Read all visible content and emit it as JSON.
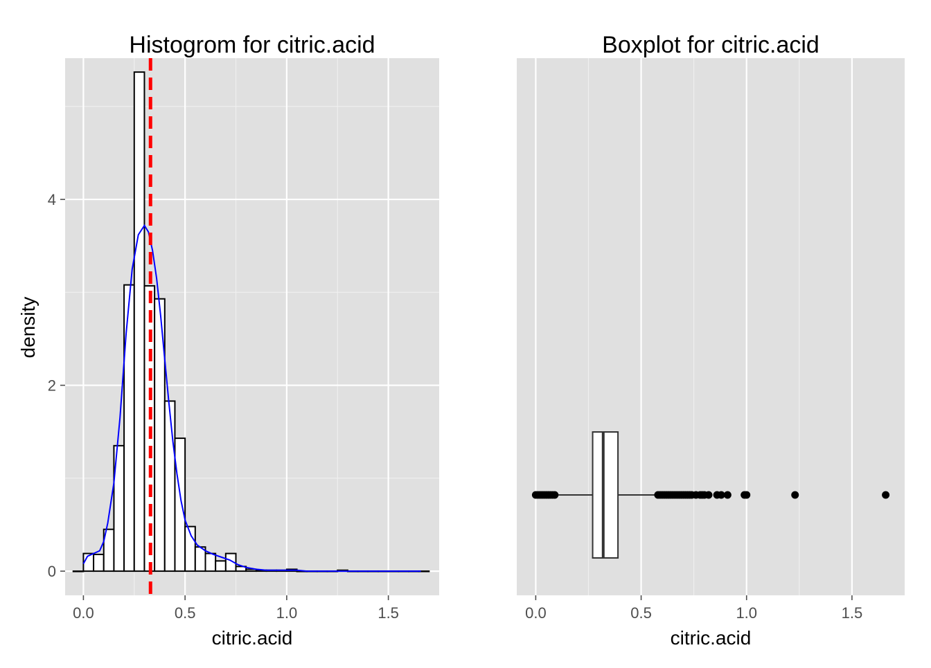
{
  "chart_data": [
    {
      "type": "bar",
      "subtype": "histogram",
      "title": "Histogrom for citric.acid",
      "xlabel": "citric.acid",
      "ylabel": "density",
      "xlim": [
        -0.09,
        1.75
      ],
      "ylim": [
        -0.26,
        5.52
      ],
      "x_ticks": [
        0.0,
        0.5,
        1.0,
        1.5
      ],
      "x_tick_labels": [
        "0.0",
        "0.5",
        "1.0",
        "1.5"
      ],
      "y_ticks": [
        0,
        2,
        4
      ],
      "y_tick_labels": [
        "0",
        "2",
        "4"
      ],
      "grid": true,
      "bin_width": 0.05,
      "bins": [
        {
          "x0": -0.05,
          "x1": 0.0,
          "density": 0.0
        },
        {
          "x0": 0.0,
          "x1": 0.05,
          "density": 0.19
        },
        {
          "x0": 0.05,
          "x1": 0.1,
          "density": 0.18
        },
        {
          "x0": 0.1,
          "x1": 0.15,
          "density": 0.45
        },
        {
          "x0": 0.15,
          "x1": 0.2,
          "density": 1.35
        },
        {
          "x0": 0.2,
          "x1": 0.25,
          "density": 3.08
        },
        {
          "x0": 0.25,
          "x1": 0.3,
          "density": 5.37
        },
        {
          "x0": 0.3,
          "x1": 0.35,
          "density": 3.07
        },
        {
          "x0": 0.35,
          "x1": 0.4,
          "density": 2.93
        },
        {
          "x0": 0.4,
          "x1": 0.45,
          "density": 1.83
        },
        {
          "x0": 0.45,
          "x1": 0.5,
          "density": 1.43
        },
        {
          "x0": 0.5,
          "x1": 0.55,
          "density": 0.48
        },
        {
          "x0": 0.55,
          "x1": 0.6,
          "density": 0.26
        },
        {
          "x0": 0.6,
          "x1": 0.65,
          "density": 0.19
        },
        {
          "x0": 0.65,
          "x1": 0.7,
          "density": 0.11
        },
        {
          "x0": 0.7,
          "x1": 0.75,
          "density": 0.19
        },
        {
          "x0": 0.75,
          "x1": 0.8,
          "density": 0.05
        },
        {
          "x0": 0.8,
          "x1": 0.85,
          "density": 0.02
        },
        {
          "x0": 0.85,
          "x1": 0.9,
          "density": 0.01
        },
        {
          "x0": 0.9,
          "x1": 0.95,
          "density": 0.01
        },
        {
          "x0": 0.95,
          "x1": 1.0,
          "density": 0.01
        },
        {
          "x0": 1.0,
          "x1": 1.05,
          "density": 0.02
        },
        {
          "x0": 1.05,
          "x1": 1.1,
          "density": 0.0
        },
        {
          "x0": 1.1,
          "x1": 1.15,
          "density": 0.0
        },
        {
          "x0": 1.15,
          "x1": 1.2,
          "density": 0.0
        },
        {
          "x0": 1.2,
          "x1": 1.25,
          "density": 0.0
        },
        {
          "x0": 1.25,
          "x1": 1.3,
          "density": 0.01
        },
        {
          "x0": 1.3,
          "x1": 1.35,
          "density": 0.0
        },
        {
          "x0": 1.35,
          "x1": 1.4,
          "density": 0.0
        },
        {
          "x0": 1.4,
          "x1": 1.45,
          "density": 0.0
        },
        {
          "x0": 1.45,
          "x1": 1.5,
          "density": 0.0
        },
        {
          "x0": 1.5,
          "x1": 1.55,
          "density": 0.0
        },
        {
          "x0": 1.55,
          "x1": 1.6,
          "density": 0.0
        },
        {
          "x0": 1.6,
          "x1": 1.65,
          "density": 0.0
        },
        {
          "x0": 1.65,
          "x1": 1.7,
          "density": 0.0
        }
      ],
      "bar_fill": "#ffffff",
      "bar_stroke": "#000000",
      "density_curve": {
        "color": "#0000ff",
        "points": [
          [
            0.0,
            0.08
          ],
          [
            0.02,
            0.16
          ],
          [
            0.05,
            0.19
          ],
          [
            0.08,
            0.22
          ],
          [
            0.1,
            0.32
          ],
          [
            0.12,
            0.52
          ],
          [
            0.15,
            0.95
          ],
          [
            0.18,
            1.65
          ],
          [
            0.21,
            2.55
          ],
          [
            0.24,
            3.25
          ],
          [
            0.27,
            3.62
          ],
          [
            0.3,
            3.72
          ],
          [
            0.32,
            3.65
          ],
          [
            0.34,
            3.45
          ],
          [
            0.36,
            3.15
          ],
          [
            0.38,
            2.75
          ],
          [
            0.4,
            2.28
          ],
          [
            0.42,
            1.82
          ],
          [
            0.44,
            1.4
          ],
          [
            0.46,
            1.05
          ],
          [
            0.48,
            0.76
          ],
          [
            0.5,
            0.55
          ],
          [
            0.53,
            0.38
          ],
          [
            0.56,
            0.28
          ],
          [
            0.6,
            0.22
          ],
          [
            0.64,
            0.18
          ],
          [
            0.68,
            0.15
          ],
          [
            0.72,
            0.12
          ],
          [
            0.76,
            0.07
          ],
          [
            0.8,
            0.04
          ],
          [
            0.85,
            0.02
          ],
          [
            0.9,
            0.01
          ],
          [
            0.95,
            0.01
          ],
          [
            1.0,
            0.01
          ],
          [
            1.05,
            0.01
          ],
          [
            1.1,
            0.0
          ],
          [
            1.66,
            0.0
          ]
        ]
      },
      "mean_line": {
        "x": 0.33,
        "color": "#ff0000",
        "style": "dashed"
      }
    },
    {
      "type": "boxplot",
      "title": "Boxplot for citric.acid",
      "xlabel": "citric.acid",
      "xlim": [
        -0.09,
        1.75
      ],
      "x_ticks": [
        0.0,
        0.5,
        1.0,
        1.5
      ],
      "x_tick_labels": [
        "0.0",
        "0.5",
        "1.0",
        "1.5"
      ],
      "grid": true,
      "box": {
        "lower_whisker": 0.0,
        "q1": 0.27,
        "median": 0.32,
        "q3": 0.39,
        "upper_whisker": 0.57
      },
      "outliers": [
        0.0,
        0.01,
        0.02,
        0.03,
        0.04,
        0.05,
        0.06,
        0.07,
        0.08,
        0.09,
        0.58,
        0.59,
        0.6,
        0.61,
        0.62,
        0.63,
        0.64,
        0.65,
        0.66,
        0.67,
        0.68,
        0.69,
        0.7,
        0.71,
        0.72,
        0.73,
        0.74,
        0.76,
        0.78,
        0.79,
        0.8,
        0.82,
        0.86,
        0.88,
        0.91,
        0.99,
        1.0,
        1.23,
        1.66
      ]
    }
  ]
}
